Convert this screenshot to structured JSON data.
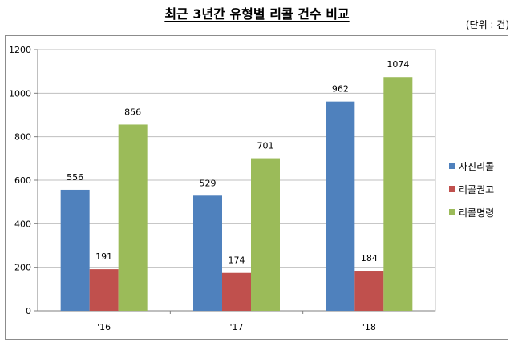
{
  "title": "최근 3년간 유형별 리콜 건수 비교",
  "unit_label": "(단위 : 건)",
  "chart_data": {
    "type": "bar",
    "categories": [
      "'16",
      "'17",
      "'18"
    ],
    "series": [
      {
        "name": "자진리콜",
        "values": [
          556,
          529,
          962
        ],
        "color": "#4f81bd"
      },
      {
        "name": "리콜권고",
        "values": [
          191,
          174,
          184
        ],
        "color": "#c0504d"
      },
      {
        "name": "리콜명령",
        "values": [
          856,
          701,
          1074
        ],
        "color": "#9bbb59"
      }
    ],
    "ylim": [
      0,
      1200
    ],
    "yticks": [
      0,
      200,
      400,
      600,
      800,
      1000,
      1200
    ],
    "grid": true,
    "legend": "right"
  }
}
